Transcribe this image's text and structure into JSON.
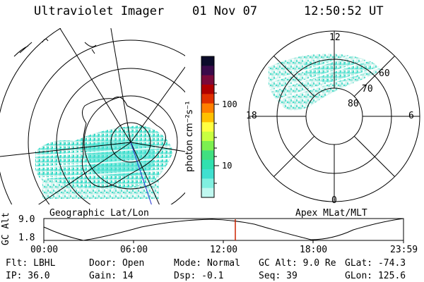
{
  "header": {
    "instrument": "Ultraviolet Imager",
    "date": "01 Nov 07",
    "time": "12:50:52 UT"
  },
  "geo_panel": {
    "label": "Geographic Lat/Lon"
  },
  "colorbar": {
    "unit_label": "photon cm⁻²s⁻¹",
    "ticks": [
      "100",
      "10"
    ],
    "colors": [
      "#0b0b2a",
      "#3a0a4a",
      "#7a0a3a",
      "#b00000",
      "#e03000",
      "#ff7f00",
      "#ffc000",
      "#ffff40",
      "#c8ff40",
      "#7cf050",
      "#40e080",
      "#30e0b0",
      "#40e0d0",
      "#80f0e0",
      "#c0f8f0"
    ]
  },
  "apex_panel": {
    "label": "Apex MLat/MLT",
    "mlt_labels": {
      "top": "12",
      "left": "18",
      "right": "6",
      "bottom": "0"
    },
    "lat_labels": [
      "60",
      "70",
      "80"
    ]
  },
  "gc_alt_plot": {
    "ylabel": "GC Alt",
    "yticks": [
      "9.0",
      "1.8"
    ],
    "xticks": [
      "00:00",
      "06:00",
      "12:00",
      "18:00",
      "23:59"
    ],
    "marker_color": "#cc2200"
  },
  "status": {
    "flt": "Flt: LBHL",
    "ip": "IP: 36.0",
    "door": "Door: Open",
    "gain": "Gain: 14",
    "mode": "Mode: Normal",
    "dsp": "Dsp:    -0.1",
    "gc_alt": "GC Alt: 9.0 Re",
    "seq": "Seq: 39",
    "glat": "GLat: -74.3",
    "glon": "GLon: 125.6"
  }
}
